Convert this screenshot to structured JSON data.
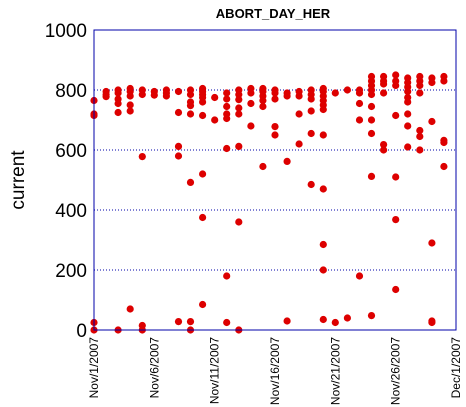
{
  "chart_data": {
    "type": "scatter",
    "title": "ABORT_DAY_HER",
    "xlabel": "",
    "ylabel": "current",
    "x_ticks": [
      "Nov/1/2007",
      "Nov/6/2007",
      "Nov/11/2007",
      "Nov/16/2007",
      "Nov/21/2007",
      "Nov/26/2007",
      "Dec/1/2007"
    ],
    "y_ticks": [
      0,
      200,
      400,
      600,
      800,
      1000
    ],
    "xlim": [
      "2007-11-01",
      "2007-12-01"
    ],
    "ylim": [
      0,
      1000
    ],
    "grid": "horizontal dotted",
    "colors": {
      "points": "#dd0000",
      "grid": "#0000aa",
      "frame": "#0000aa"
    },
    "series": [
      {
        "points": [
          [
            "2007-11-01",
            765
          ],
          [
            "2007-11-01",
            720
          ],
          [
            "2007-11-01",
            715
          ],
          [
            "2007-11-01",
            25
          ],
          [
            "2007-11-01",
            0
          ],
          [
            "2007-11-02",
            795
          ],
          [
            "2007-11-02",
            785
          ],
          [
            "2007-11-02",
            778
          ],
          [
            "2007-11-03",
            800
          ],
          [
            "2007-11-03",
            790
          ],
          [
            "2007-11-03",
            770
          ],
          [
            "2007-11-03",
            755
          ],
          [
            "2007-11-03",
            725
          ],
          [
            "2007-11-03",
            0
          ],
          [
            "2007-11-04",
            805
          ],
          [
            "2007-11-04",
            795
          ],
          [
            "2007-11-04",
            780
          ],
          [
            "2007-11-04",
            750
          ],
          [
            "2007-11-04",
            730
          ],
          [
            "2007-11-04",
            70
          ],
          [
            "2007-11-05",
            800
          ],
          [
            "2007-11-05",
            785
          ],
          [
            "2007-11-05",
            578
          ],
          [
            "2007-11-05",
            15
          ],
          [
            "2007-11-05",
            0
          ],
          [
            "2007-11-06",
            795
          ],
          [
            "2007-11-06",
            783
          ],
          [
            "2007-11-07",
            800
          ],
          [
            "2007-11-07",
            790
          ],
          [
            "2007-11-07",
            780
          ],
          [
            "2007-11-08",
            795
          ],
          [
            "2007-11-08",
            725
          ],
          [
            "2007-11-08",
            612
          ],
          [
            "2007-11-08",
            580
          ],
          [
            "2007-11-08",
            28
          ],
          [
            "2007-11-09",
            800
          ],
          [
            "2007-11-09",
            785
          ],
          [
            "2007-11-09",
            760
          ],
          [
            "2007-11-09",
            748
          ],
          [
            "2007-11-09",
            720
          ],
          [
            "2007-11-09",
            492
          ],
          [
            "2007-11-09",
            28
          ],
          [
            "2007-11-09",
            0
          ],
          [
            "2007-11-10",
            805
          ],
          [
            "2007-11-10",
            795
          ],
          [
            "2007-11-10",
            785
          ],
          [
            "2007-11-10",
            775
          ],
          [
            "2007-11-10",
            760
          ],
          [
            "2007-11-10",
            715
          ],
          [
            "2007-11-10",
            520
          ],
          [
            "2007-11-10",
            375
          ],
          [
            "2007-11-10",
            85
          ],
          [
            "2007-11-11",
            775
          ],
          [
            "2007-11-11",
            700
          ],
          [
            "2007-11-12",
            790
          ],
          [
            "2007-11-12",
            770
          ],
          [
            "2007-11-12",
            745
          ],
          [
            "2007-11-12",
            720
          ],
          [
            "2007-11-12",
            705
          ],
          [
            "2007-11-12",
            605
          ],
          [
            "2007-11-12",
            180
          ],
          [
            "2007-11-12",
            25
          ],
          [
            "2007-11-13",
            800
          ],
          [
            "2007-11-13",
            785
          ],
          [
            "2007-11-13",
            768
          ],
          [
            "2007-11-13",
            740
          ],
          [
            "2007-11-13",
            720
          ],
          [
            "2007-11-13",
            612
          ],
          [
            "2007-11-13",
            360
          ],
          [
            "2007-11-13",
            0
          ],
          [
            "2007-11-14",
            805
          ],
          [
            "2007-11-14",
            790
          ],
          [
            "2007-11-14",
            755
          ],
          [
            "2007-11-14",
            680
          ],
          [
            "2007-11-15",
            805
          ],
          [
            "2007-11-15",
            795
          ],
          [
            "2007-11-15",
            780
          ],
          [
            "2007-11-15",
            765
          ],
          [
            "2007-11-15",
            745
          ],
          [
            "2007-11-15",
            545
          ],
          [
            "2007-11-16",
            800
          ],
          [
            "2007-11-16",
            790
          ],
          [
            "2007-11-16",
            770
          ],
          [
            "2007-11-16",
            678
          ],
          [
            "2007-11-16",
            650
          ],
          [
            "2007-11-17",
            790
          ],
          [
            "2007-11-17",
            780
          ],
          [
            "2007-11-17",
            562
          ],
          [
            "2007-11-17",
            30
          ],
          [
            "2007-11-18",
            795
          ],
          [
            "2007-11-18",
            780
          ],
          [
            "2007-11-18",
            720
          ],
          [
            "2007-11-18",
            620
          ],
          [
            "2007-11-19",
            800
          ],
          [
            "2007-11-19",
            785
          ],
          [
            "2007-11-19",
            770
          ],
          [
            "2007-11-19",
            730
          ],
          [
            "2007-11-19",
            655
          ],
          [
            "2007-11-19",
            485
          ],
          [
            "2007-11-20",
            805
          ],
          [
            "2007-11-20",
            795
          ],
          [
            "2007-11-20",
            780
          ],
          [
            "2007-11-20",
            765
          ],
          [
            "2007-11-20",
            750
          ],
          [
            "2007-11-20",
            735
          ],
          [
            "2007-11-20",
            650
          ],
          [
            "2007-11-20",
            470
          ],
          [
            "2007-11-20",
            285
          ],
          [
            "2007-11-20",
            200
          ],
          [
            "2007-11-20",
            35
          ],
          [
            "2007-11-21",
            790
          ],
          [
            "2007-11-21",
            25
          ],
          [
            "2007-11-22",
            800
          ],
          [
            "2007-11-22",
            40
          ],
          [
            "2007-11-23",
            800
          ],
          [
            "2007-11-23",
            790
          ],
          [
            "2007-11-23",
            755
          ],
          [
            "2007-11-23",
            700
          ],
          [
            "2007-11-23",
            180
          ],
          [
            "2007-11-24",
            845
          ],
          [
            "2007-11-24",
            830
          ],
          [
            "2007-11-24",
            815
          ],
          [
            "2007-11-24",
            800
          ],
          [
            "2007-11-24",
            785
          ],
          [
            "2007-11-24",
            745
          ],
          [
            "2007-11-24",
            700
          ],
          [
            "2007-11-24",
            655
          ],
          [
            "2007-11-24",
            512
          ],
          [
            "2007-11-24",
            48
          ],
          [
            "2007-11-25",
            845
          ],
          [
            "2007-11-25",
            830
          ],
          [
            "2007-11-25",
            820
          ],
          [
            "2007-11-25",
            790
          ],
          [
            "2007-11-25",
            618
          ],
          [
            "2007-11-25",
            600
          ],
          [
            "2007-11-26",
            850
          ],
          [
            "2007-11-26",
            830
          ],
          [
            "2007-11-26",
            815
          ],
          [
            "2007-11-26",
            715
          ],
          [
            "2007-11-26",
            510
          ],
          [
            "2007-11-26",
            368
          ],
          [
            "2007-11-26",
            135
          ],
          [
            "2007-11-27",
            840
          ],
          [
            "2007-11-27",
            825
          ],
          [
            "2007-11-27",
            810
          ],
          [
            "2007-11-27",
            795
          ],
          [
            "2007-11-27",
            775
          ],
          [
            "2007-11-27",
            760
          ],
          [
            "2007-11-27",
            720
          ],
          [
            "2007-11-27",
            680
          ],
          [
            "2007-11-27",
            610
          ],
          [
            "2007-11-28",
            845
          ],
          [
            "2007-11-28",
            830
          ],
          [
            "2007-11-28",
            815
          ],
          [
            "2007-11-28",
            790
          ],
          [
            "2007-11-28",
            665
          ],
          [
            "2007-11-28",
            645
          ],
          [
            "2007-11-28",
            600
          ],
          [
            "2007-11-29",
            840
          ],
          [
            "2007-11-29",
            825
          ],
          [
            "2007-11-29",
            695
          ],
          [
            "2007-11-29",
            290
          ],
          [
            "2007-11-29",
            30
          ],
          [
            "2007-11-29",
            25
          ],
          [
            "2007-11-30",
            845
          ],
          [
            "2007-11-30",
            830
          ],
          [
            "2007-11-30",
            632
          ],
          [
            "2007-11-30",
            625
          ],
          [
            "2007-11-30",
            545
          ]
        ]
      }
    ]
  }
}
